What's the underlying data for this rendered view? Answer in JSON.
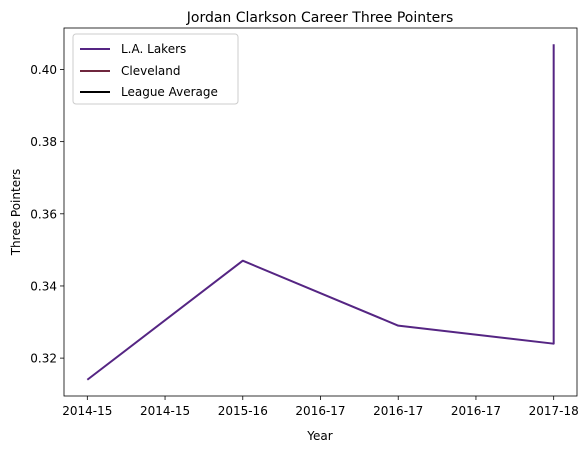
{
  "chart_data": {
    "type": "line",
    "title": "Jordan Clarkson Career Three Pointers",
    "xlabel": "Year",
    "ylabel": "Three Pointers",
    "x_tick_labels": [
      "2014-15",
      "2014-15",
      "2015-16",
      "2016-17",
      "2016-17",
      "2016-17",
      "2017-18"
    ],
    "xlim": [
      -0.15,
      3.15
    ],
    "ylim": [
      0.3095,
      0.4115
    ],
    "y_ticks": [
      0.32,
      0.34,
      0.36,
      0.38,
      0.4
    ],
    "y_tick_labels": [
      "0.32",
      "0.34",
      "0.36",
      "0.38",
      "0.40"
    ],
    "grid": false,
    "legend": "upper left",
    "series": [
      {
        "name": "L.A. Lakers",
        "color": "#552583",
        "points": [
          {
            "x": 0,
            "y": 0.314
          },
          {
            "x": 1,
            "y": 0.347
          },
          {
            "x": 2,
            "y": 0.329
          },
          {
            "x": 3,
            "y": 0.324
          },
          {
            "x": 3,
            "y": 0.407
          }
        ]
      },
      {
        "name": "Cleveland",
        "color": "#6F263D",
        "points": []
      },
      {
        "name": "League Average",
        "color": "#000000",
        "points": []
      }
    ]
  }
}
